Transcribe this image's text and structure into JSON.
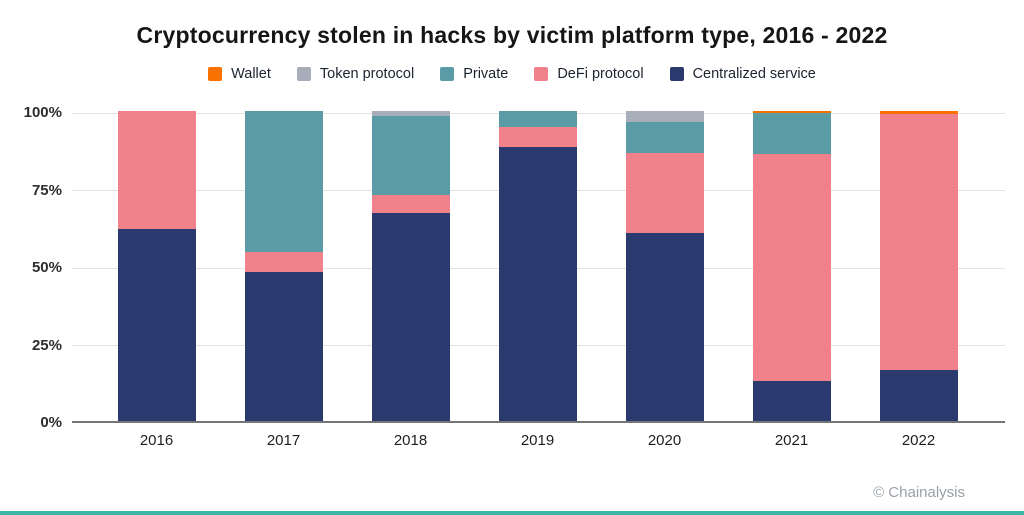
{
  "page": {
    "background": "#ffffff",
    "footer_bar_color": "#3bb4aa"
  },
  "attribution": {
    "text": "© Chainalysis"
  },
  "chart_data": {
    "type": "bar",
    "stacked": true,
    "title": "Cryptocurrency stolen in hacks by victim platform type, 2016 - 2022",
    "xlabel": "",
    "ylabel": "",
    "ylim": [
      0,
      100
    ],
    "yticks": [
      {
        "value": 0,
        "label": "0%"
      },
      {
        "value": 25,
        "label": "25%"
      },
      {
        "value": 50,
        "label": "50%"
      },
      {
        "value": 75,
        "label": "75%"
      },
      {
        "value": 100,
        "label": "100%"
      }
    ],
    "grid": true,
    "legend_position": "top",
    "categories": [
      "2016",
      "2017",
      "2018",
      "2019",
      "2020",
      "2021",
      "2022"
    ],
    "series": [
      {
        "name": "Wallet",
        "color": "#f97100",
        "values": [
          0,
          0,
          0,
          0,
          0,
          0.5,
          1
        ]
      },
      {
        "name": "Token protocol",
        "color": "#a7adb9",
        "values": [
          0,
          0,
          1.5,
          0,
          3.5,
          0,
          0
        ]
      },
      {
        "name": "Private",
        "color": "#5a9ba5",
        "values": [
          0,
          45.5,
          25.5,
          5,
          10,
          13.5,
          0
        ]
      },
      {
        "name": "DeFi protocol",
        "color": "#f0818a",
        "values": [
          38,
          6.5,
          6,
          6.5,
          26,
          73,
          82.5
        ]
      },
      {
        "name": "Centralized service",
        "color": "#2b3a6e",
        "values": [
          62,
          48,
          67,
          88.5,
          60.5,
          13,
          16.5
        ]
      }
    ],
    "stack_order_bottom_to_top": [
      "Centralized service",
      "DeFi protocol",
      "Private",
      "Token protocol",
      "Wallet"
    ]
  }
}
